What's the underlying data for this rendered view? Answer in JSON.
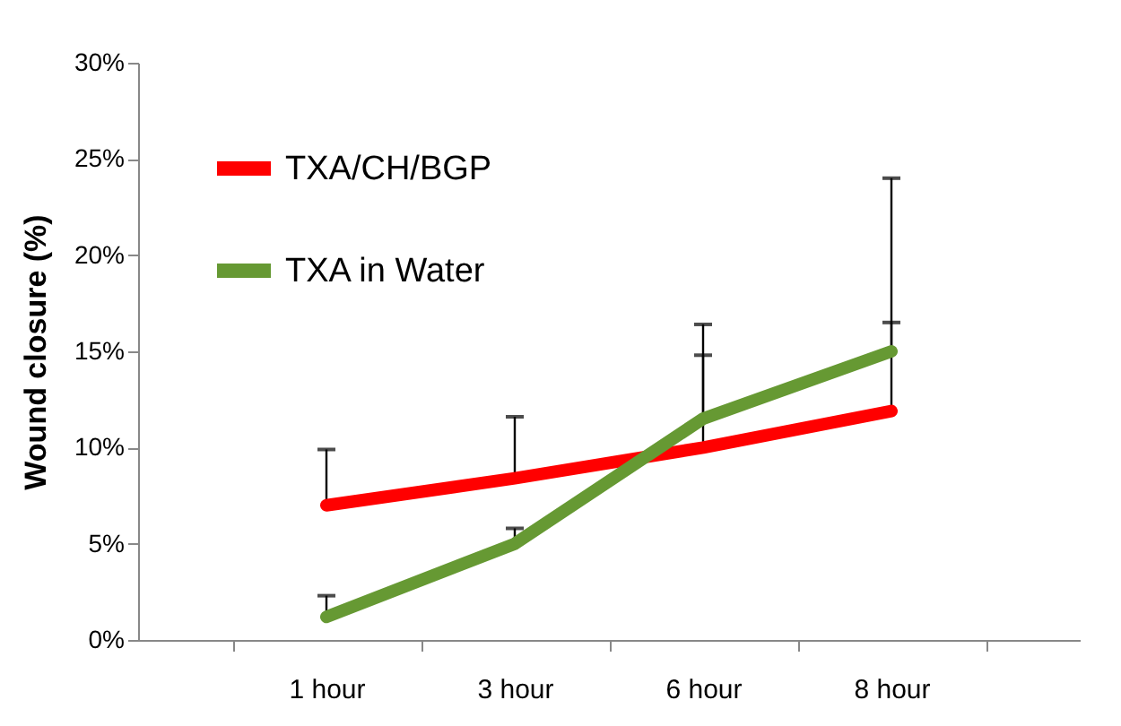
{
  "chart_data": {
    "type": "line",
    "ylabel": "Wound closure (%)",
    "categories": [
      "1 hour",
      "3 hour",
      "6 hour",
      "8 hour"
    ],
    "series": [
      {
        "name": "TXA/CH/BGP",
        "color": "#ff0000",
        "values": [
          7.0,
          8.4,
          10.0,
          11.9
        ],
        "errors": [
          [
            7.0,
            9.9
          ],
          [
            8.4,
            11.6
          ],
          [
            10.0,
            14.8
          ],
          [
            11.9,
            16.5
          ]
        ]
      },
      {
        "name": "TXA in Water",
        "color": "#669933",
        "values": [
          1.2,
          5.0,
          11.5,
          15.0
        ],
        "errors": [
          [
            1.2,
            2.3
          ],
          [
            5.0,
            5.8
          ],
          [
            11.5,
            16.4
          ],
          [
            15.0,
            24.0
          ]
        ]
      }
    ],
    "ylim": [
      0,
      30
    ],
    "yticks": [
      {
        "value": 0,
        "label": "0%"
      },
      {
        "value": 5,
        "label": "5%"
      },
      {
        "value": 10,
        "label": "10%"
      },
      {
        "value": 15,
        "label": "15%"
      },
      {
        "value": 20,
        "label": "20%"
      },
      {
        "value": 25,
        "label": "25%"
      },
      {
        "value": 30,
        "label": "30%"
      }
    ],
    "grid": false,
    "legend": "top left",
    "marker": "none",
    "line_style": "solid"
  }
}
